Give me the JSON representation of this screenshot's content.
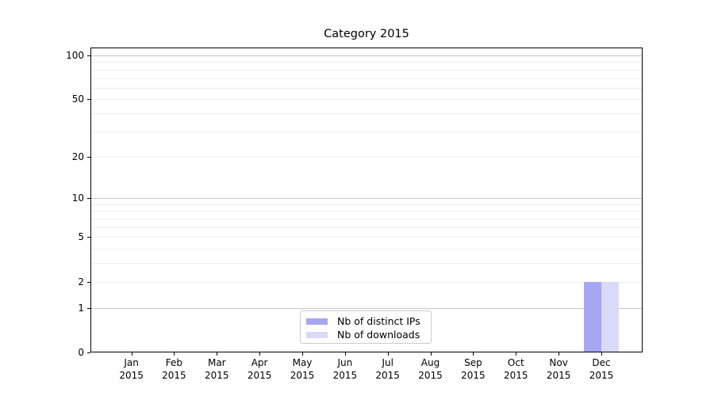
{
  "chart_data": {
    "type": "bar",
    "title": "Category 2015",
    "xlabel": "",
    "ylabel": "",
    "categories": [
      "Jan",
      "Feb",
      "Mar",
      "Apr",
      "May",
      "Jun",
      "Jul",
      "Aug",
      "Sep",
      "Oct",
      "Nov",
      "Dec"
    ],
    "category_year": "2015",
    "series": [
      {
        "name": "Nb of distinct IPs",
        "color": "#a6a6f2",
        "values": [
          0,
          0,
          0,
          0,
          0,
          0,
          0,
          0,
          0,
          0,
          0,
          2
        ]
      },
      {
        "name": "Nb of downloads",
        "color": "#dadaf8",
        "values": [
          0,
          0,
          0,
          0,
          0,
          0,
          0,
          0,
          0,
          0,
          0,
          2
        ]
      }
    ],
    "yscale": "log1p",
    "ylim": [
      0,
      113
    ],
    "y_ticks": [
      0,
      1,
      2,
      5,
      10,
      20,
      50,
      100
    ],
    "y_major_gridlines": [
      1,
      10,
      100
    ],
    "y_minor_gridlines": [
      2,
      3,
      4,
      5,
      6,
      7,
      8,
      9,
      20,
      30,
      40,
      50,
      60,
      70,
      80,
      90
    ],
    "grid": true,
    "legend_position": "lower center"
  },
  "colors": {
    "bar_distinct_ips": "#a6a6f2",
    "bar_downloads": "#dadaf8",
    "major_grid": "#c6c6c6",
    "minor_grid": "#ededed",
    "axis": "#000000",
    "legend_border": "#cccccc",
    "background": "#ffffff"
  }
}
